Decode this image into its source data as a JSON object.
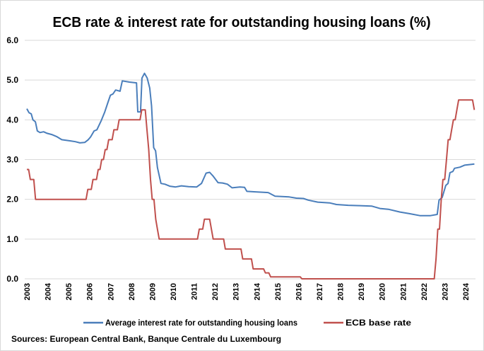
{
  "chart_data": {
    "type": "line",
    "title": "ECB rate & interest rate for outstanding housing loans (%)",
    "source": "Sources: European Central Bank, Banque Centrale du Luxembourg",
    "xlabel": "",
    "ylabel": "",
    "xlim": [
      2003,
      2024.42
    ],
    "ylim": [
      0,
      6
    ],
    "y_ticks": [
      "0.0",
      "1.0",
      "2.0",
      "3.0",
      "4.0",
      "5.0",
      "6.0"
    ],
    "x_ticks": [
      "2003",
      "2004",
      "2005",
      "2006",
      "2007",
      "2008",
      "2009",
      "2010",
      "2011",
      "2012",
      "2013",
      "2014",
      "2015",
      "2016",
      "2017",
      "2018",
      "2019",
      "2020",
      "2021",
      "2022",
      "2023",
      "2024"
    ],
    "grid": true,
    "legend_position": "bottom",
    "series": [
      {
        "name": "Average interest rate for outstanding housing loans",
        "color": "#4a7ebb",
        "points": [
          [
            2003.0,
            4.28
          ],
          [
            2003.1,
            4.18
          ],
          [
            2003.21,
            4.15
          ],
          [
            2003.29,
            4.0
          ],
          [
            2003.41,
            3.95
          ],
          [
            2003.5,
            3.72
          ],
          [
            2003.63,
            3.68
          ],
          [
            2003.8,
            3.7
          ],
          [
            2003.97,
            3.66
          ],
          [
            2004.19,
            3.63
          ],
          [
            2004.42,
            3.58
          ],
          [
            2004.67,
            3.5
          ],
          [
            2005.09,
            3.47
          ],
          [
            2005.32,
            3.45
          ],
          [
            2005.54,
            3.42
          ],
          [
            2005.77,
            3.43
          ],
          [
            2005.94,
            3.5
          ],
          [
            2006.05,
            3.57
          ],
          [
            2006.22,
            3.72
          ],
          [
            2006.35,
            3.75
          ],
          [
            2006.56,
            3.98
          ],
          [
            2006.73,
            4.2
          ],
          [
            2006.89,
            4.45
          ],
          [
            2007.0,
            4.62
          ],
          [
            2007.12,
            4.65
          ],
          [
            2007.25,
            4.75
          ],
          [
            2007.46,
            4.72
          ],
          [
            2007.57,
            4.98
          ],
          [
            2007.91,
            4.95
          ],
          [
            2008.25,
            4.93
          ],
          [
            2008.31,
            4.2
          ],
          [
            2008.44,
            4.2
          ],
          [
            2008.51,
            5.05
          ],
          [
            2008.63,
            5.17
          ],
          [
            2008.76,
            5.05
          ],
          [
            2008.88,
            4.8
          ],
          [
            2008.97,
            4.35
          ],
          [
            2009.07,
            3.3
          ],
          [
            2009.16,
            3.22
          ],
          [
            2009.25,
            2.8
          ],
          [
            2009.42,
            2.4
          ],
          [
            2009.61,
            2.38
          ],
          [
            2009.84,
            2.33
          ],
          [
            2010.12,
            2.31
          ],
          [
            2010.4,
            2.34
          ],
          [
            2010.74,
            2.32
          ],
          [
            2011.13,
            2.31
          ],
          [
            2011.36,
            2.4
          ],
          [
            2011.58,
            2.66
          ],
          [
            2011.75,
            2.68
          ],
          [
            2011.92,
            2.58
          ],
          [
            2012.15,
            2.42
          ],
          [
            2012.37,
            2.41
          ],
          [
            2012.6,
            2.38
          ],
          [
            2012.82,
            2.29
          ],
          [
            2013.2,
            2.31
          ],
          [
            2013.42,
            2.3
          ],
          [
            2013.53,
            2.2
          ],
          [
            2013.87,
            2.19
          ],
          [
            2014.55,
            2.17
          ],
          [
            2014.88,
            2.08
          ],
          [
            2015.56,
            2.06
          ],
          [
            2015.9,
            2.03
          ],
          [
            2016.24,
            2.02
          ],
          [
            2016.47,
            1.98
          ],
          [
            2016.92,
            1.93
          ],
          [
            2017.49,
            1.91
          ],
          [
            2017.82,
            1.87
          ],
          [
            2018.38,
            1.85
          ],
          [
            2018.94,
            1.84
          ],
          [
            2019.5,
            1.83
          ],
          [
            2019.9,
            1.77
          ],
          [
            2020.3,
            1.75
          ],
          [
            2020.86,
            1.68
          ],
          [
            2021.31,
            1.64
          ],
          [
            2021.81,
            1.59
          ],
          [
            2022.32,
            1.59
          ],
          [
            2022.64,
            1.62
          ],
          [
            2022.73,
            1.98
          ],
          [
            2022.88,
            2.05
          ],
          [
            2023.05,
            2.35
          ],
          [
            2023.16,
            2.4
          ],
          [
            2023.25,
            2.67
          ],
          [
            2023.39,
            2.7
          ],
          [
            2023.47,
            2.78
          ],
          [
            2023.73,
            2.81
          ],
          [
            2023.95,
            2.86
          ],
          [
            2024.29,
            2.88
          ],
          [
            2024.42,
            2.89
          ]
        ]
      },
      {
        "name": "ECB base rate",
        "color": "#c0504d",
        "points": [
          [
            2003.0,
            2.75
          ],
          [
            2003.083,
            2.75
          ],
          [
            2003.167,
            2.5
          ],
          [
            2003.333,
            2.5
          ],
          [
            2003.417,
            2.0
          ],
          [
            2005.833,
            2.0
          ],
          [
            2005.917,
            2.25
          ],
          [
            2006.083,
            2.25
          ],
          [
            2006.167,
            2.5
          ],
          [
            2006.333,
            2.5
          ],
          [
            2006.417,
            2.75
          ],
          [
            2006.5,
            2.75
          ],
          [
            2006.583,
            3.0
          ],
          [
            2006.667,
            3.0
          ],
          [
            2006.75,
            3.25
          ],
          [
            2006.833,
            3.25
          ],
          [
            2006.917,
            3.5
          ],
          [
            2007.083,
            3.5
          ],
          [
            2007.167,
            3.75
          ],
          [
            2007.333,
            3.75
          ],
          [
            2007.417,
            4.0
          ],
          [
            2008.417,
            4.0
          ],
          [
            2008.5,
            4.25
          ],
          [
            2008.667,
            4.25
          ],
          [
            2008.75,
            3.75
          ],
          [
            2008.833,
            3.25
          ],
          [
            2008.917,
            2.5
          ],
          [
            2009.0,
            2.0
          ],
          [
            2009.083,
            2.0
          ],
          [
            2009.167,
            1.5
          ],
          [
            2009.25,
            1.25
          ],
          [
            2009.333,
            1.0
          ],
          [
            2011.167,
            1.0
          ],
          [
            2011.25,
            1.25
          ],
          [
            2011.417,
            1.25
          ],
          [
            2011.5,
            1.5
          ],
          [
            2011.75,
            1.5
          ],
          [
            2011.833,
            1.25
          ],
          [
            2011.917,
            1.0
          ],
          [
            2012.417,
            1.0
          ],
          [
            2012.5,
            0.75
          ],
          [
            2013.25,
            0.75
          ],
          [
            2013.333,
            0.5
          ],
          [
            2013.75,
            0.5
          ],
          [
            2013.833,
            0.25
          ],
          [
            2014.333,
            0.25
          ],
          [
            2014.417,
            0.15
          ],
          [
            2014.583,
            0.15
          ],
          [
            2014.667,
            0.05
          ],
          [
            2016.083,
            0.05
          ],
          [
            2016.167,
            0.0
          ],
          [
            2022.5,
            0.0
          ],
          [
            2022.583,
            0.5
          ],
          [
            2022.667,
            1.25
          ],
          [
            2022.75,
            1.25
          ],
          [
            2022.833,
            2.0
          ],
          [
            2022.917,
            2.5
          ],
          [
            2023.0,
            2.5
          ],
          [
            2023.083,
            3.0
          ],
          [
            2023.167,
            3.5
          ],
          [
            2023.25,
            3.5
          ],
          [
            2023.333,
            3.75
          ],
          [
            2023.417,
            4.0
          ],
          [
            2023.5,
            4.0
          ],
          [
            2023.583,
            4.25
          ],
          [
            2023.667,
            4.5
          ],
          [
            2024.333,
            4.5
          ],
          [
            2024.417,
            4.25
          ]
        ]
      }
    ]
  }
}
